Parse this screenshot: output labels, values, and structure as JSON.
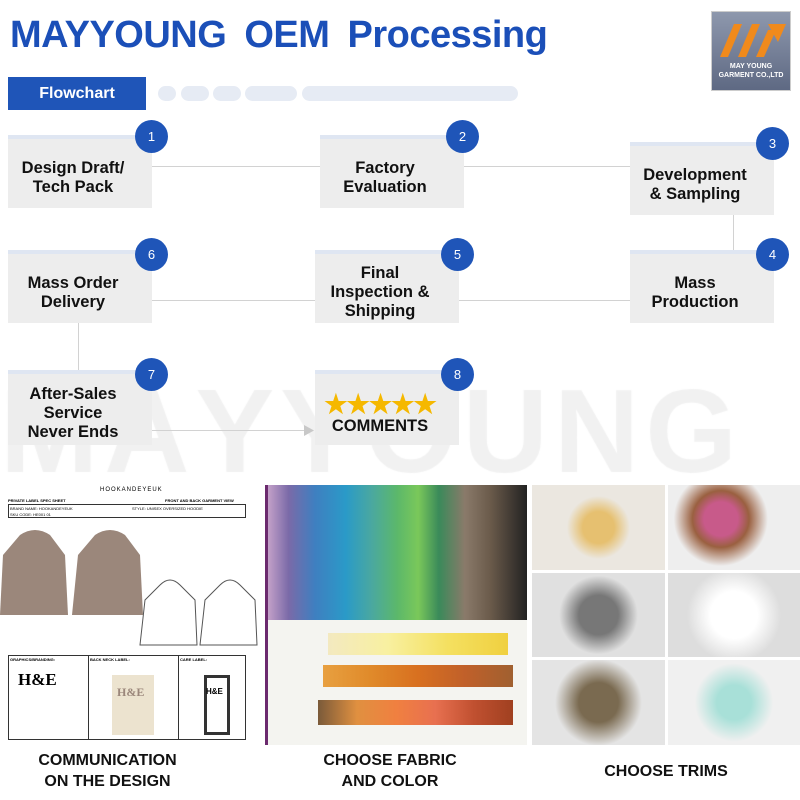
{
  "header": {
    "title": "MAYYOUNG OEM  Processing",
    "logo_text": "MAY YOUNG GARMENT CO.,LTD"
  },
  "tab": {
    "label": "Flowchart"
  },
  "watermark": "MAYYOUNG",
  "steps": [
    {
      "num": "1",
      "label": "Design Draft/\nTech Pack"
    },
    {
      "num": "2",
      "label": "Factory\nEvaluation"
    },
    {
      "num": "3",
      "label": "Development\n& Sampling"
    },
    {
      "num": "4",
      "label": "Mass\nProduction"
    },
    {
      "num": "5",
      "label": "Final\nInspection &\nShipping"
    },
    {
      "num": "6",
      "label": "Mass Order\nDelivery"
    },
    {
      "num": "7",
      "label": "After-Sales\nService\nNever Ends"
    },
    {
      "num": "8",
      "label": "COMMENTS",
      "stars": "★★★★★"
    }
  ],
  "spec_sheet": {
    "brand": "HOOKANDEYEUK",
    "title": "PRIVATE LABEL SPEC SHEET",
    "view": "FRONT AND BACK GARMENT VIEW",
    "brand_name": "BRAND NAME: HOOKANDEYEUK",
    "style": "STYLE: UNISEX OVERSIZED HOODIE",
    "sku": "SKU CODE: HE001 01",
    "graphics": "GRAPHICS/BRANDING:",
    "back_neck": "BACK NECK LABEL:",
    "care": "CARE LABEL:",
    "logo": "H&E"
  },
  "captions": [
    "COMMUNICATION\nON THE DESIGN",
    "CHOOSE FABRIC\nAND COLOR",
    "CHOOSE TRIMS"
  ],
  "colors": {
    "brand_blue": "#1f55b8",
    "box_gray": "#ededed",
    "logo_orange": "#f08a1c"
  }
}
